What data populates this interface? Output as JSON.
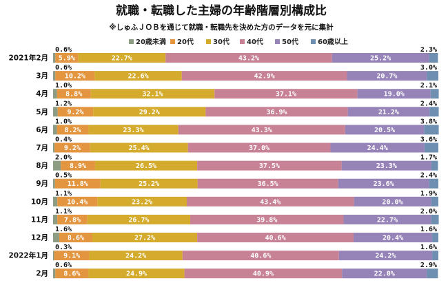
{
  "chart_data": {
    "type": "bar",
    "orientation": "horizontal",
    "stacked": true,
    "percent": true,
    "title": "就職・転職した主婦の年齢階層別構成比",
    "subtitle": "※しゅふＪＯＢを通じて就職・転職先を決めた方のデータを元に集計",
    "legend_position": "top",
    "categories": [
      "2021年2月",
      "3月",
      "4月",
      "5月",
      "6月",
      "7月",
      "8月",
      "9月",
      "10月",
      "11月",
      "12月",
      "2022年1月",
      "2月"
    ],
    "series": [
      {
        "name": "20歳未満",
        "color": "#8c9d83",
        "values": [
          0.6,
          0.6,
          1.0,
          1.2,
          1.0,
          0.4,
          2.0,
          0.5,
          1.1,
          1.1,
          1.6,
          0.3,
          0.6
        ]
      },
      {
        "name": "20代",
        "color": "#e3953f",
        "values": [
          5.9,
          10.2,
          8.8,
          9.2,
          8.2,
          9.2,
          8.9,
          11.8,
          10.4,
          7.8,
          8.6,
          9.1,
          8.6
        ]
      },
      {
        "name": "30代",
        "color": "#d4ab2c",
        "values": [
          22.7,
          22.6,
          32.1,
          29.2,
          23.3,
          25.4,
          26.5,
          25.2,
          23.2,
          26.7,
          27.2,
          24.2,
          24.9
        ]
      },
      {
        "name": "40代",
        "color": "#c88296",
        "values": [
          43.2,
          42.9,
          37.1,
          36.9,
          43.3,
          37.0,
          37.5,
          36.5,
          43.4,
          39.8,
          40.6,
          40.6,
          40.9
        ]
      },
      {
        "name": "50代",
        "color": "#9684b8",
        "values": [
          25.2,
          20.7,
          19.0,
          21.2,
          20.5,
          24.4,
          23.3,
          23.6,
          20.0,
          22.7,
          20.4,
          24.2,
          22.0
        ]
      },
      {
        "name": "60歳以上",
        "color": "#6f8fb1",
        "values": [
          2.3,
          3.0,
          2.1,
          2.4,
          3.8,
          3.6,
          1.7,
          2.4,
          1.9,
          2.0,
          1.6,
          1.6,
          2.9
        ]
      }
    ],
    "xlim": [
      0,
      100
    ],
    "grid": false
  }
}
